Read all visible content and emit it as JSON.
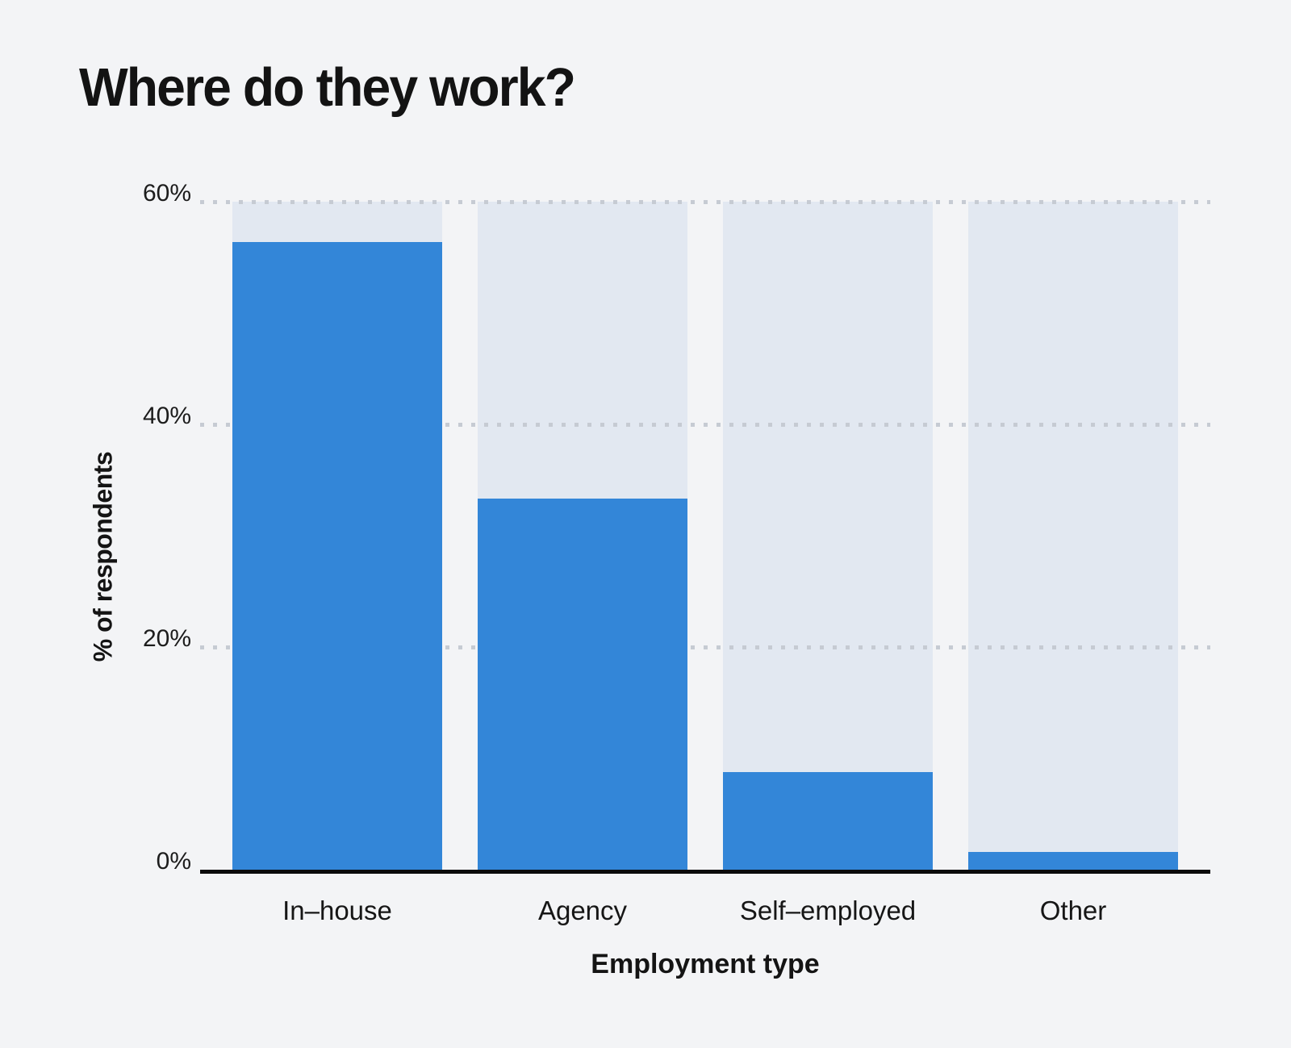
{
  "page": {
    "background_color": "#f3f4f6"
  },
  "chart_data": {
    "type": "bar",
    "title": "Where do they work?",
    "xlabel": "Employment type",
    "ylabel": "% of respondents",
    "categories": [
      "In–house",
      "Agency",
      "Self–employed",
      "Other"
    ],
    "values": [
      56.4,
      33.3,
      8.8,
      1.6
    ],
    "ylim": [
      0,
      60
    ],
    "yticks": [
      "0%",
      "20%",
      "40%",
      "60%"
    ],
    "grid": "horizontal-dotted",
    "legend": "none",
    "bar_color": "#3386d8",
    "track_color": "#e2e8f1",
    "grid_dot_color": "#c6cbd3",
    "axis_color": "#0b0b0b"
  }
}
